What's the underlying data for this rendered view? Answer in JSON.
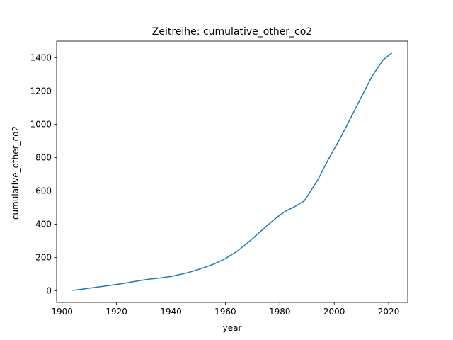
{
  "chart_data": {
    "type": "line",
    "title": "Zeitreihe: cumulative_other_co2",
    "xlabel": "year",
    "ylabel": "cumulative_other_co2",
    "xlim": [
      1898,
      2027
    ],
    "ylim": [
      -70,
      1500
    ],
    "xticks": [
      1900,
      1920,
      1940,
      1960,
      1980,
      2000,
      2020
    ],
    "yticks": [
      0,
      200,
      400,
      600,
      800,
      1000,
      1200,
      1400
    ],
    "grid": false,
    "series": [
      {
        "color": "#1f77b4",
        "x": [
          1904,
          1908,
          1912,
          1916,
          1920,
          1924,
          1928,
          1932,
          1936,
          1940,
          1944,
          1948,
          1952,
          1956,
          1960,
          1964,
          1968,
          1972,
          1976,
          1980,
          1982,
          1986,
          1989,
          1994,
          1998,
          2002,
          2006,
          2010,
          2014,
          2018,
          2021
        ],
        "y": [
          3,
          11,
          20,
          29,
          38,
          48,
          60,
          70,
          77,
          86,
          100,
          117,
          138,
          162,
          193,
          234,
          285,
          343,
          401,
          455,
          477,
          510,
          540,
          667,
          795,
          910,
          1037,
          1165,
          1292,
          1388,
          1427
        ]
      }
    ]
  }
}
